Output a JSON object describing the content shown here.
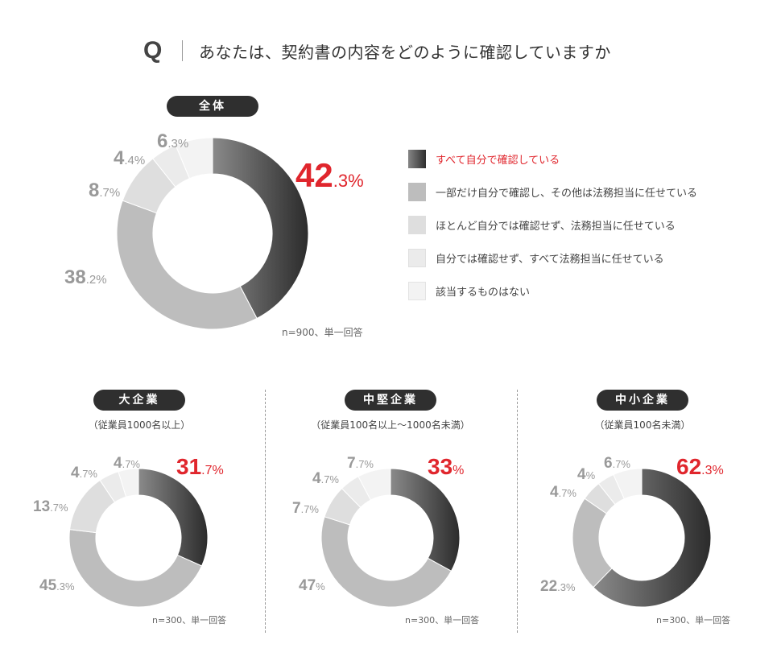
{
  "question": {
    "mark": "Q",
    "text": "あなたは、契約書の内容をどのように確認していますか"
  },
  "colors": {
    "highlight": "#e0262d",
    "segments": [
      "#4a4a4a",
      "#bdbdbd",
      "#dedede",
      "#ebebeb",
      "#f3f3f3"
    ]
  },
  "legend": [
    "すべて自分で確認している",
    "一部だけ自分で確認し、その他は法務担当に任せている",
    "ほとんど自分では確認せず、法務担当に任せている",
    "自分では確認せず、すべて法務担当に任せている",
    "該当するものはない"
  ],
  "chart_data": [
    {
      "type": "pie",
      "title": "全体",
      "subtitle": "",
      "note": "n=900、単一回答",
      "categories": [
        "すべて自分で確認している",
        "一部だけ自分で確認し、その他は法務担当に任せている",
        "ほとんど自分では確認せず、法務担当に任せている",
        "自分では確認せず、すべて法務担当に任せている",
        "該当するものはない"
      ],
      "values": [
        42.3,
        38.2,
        8.7,
        4.4,
        6.3
      ],
      "labels": [
        {
          "int": "42",
          "dec": ".3%"
        },
        {
          "int": "38",
          "dec": ".2%"
        },
        {
          "int": "8",
          "dec": ".7%"
        },
        {
          "int": "4",
          "dec": ".4%"
        },
        {
          "int": "6",
          "dec": ".3%"
        }
      ]
    },
    {
      "type": "pie",
      "title": "大企業",
      "subtitle": "（従業員1000名以上）",
      "note": "n=300、単一回答",
      "categories": [
        "すべて自分で確認している",
        "一部だけ自分で確認し、その他は法務担当に任せている",
        "ほとんど自分では確認せず、法務担当に任せている",
        "自分では確認せず、すべて法務担当に任せている",
        "該当するものはない"
      ],
      "values": [
        31.7,
        45.3,
        13.7,
        4.7,
        4.7
      ],
      "labels": [
        {
          "int": "31",
          "dec": ".7%"
        },
        {
          "int": "45",
          "dec": ".3%"
        },
        {
          "int": "13",
          "dec": ".7%"
        },
        {
          "int": "4",
          "dec": ".7%"
        },
        {
          "int": "4",
          "dec": ".7%"
        }
      ]
    },
    {
      "type": "pie",
      "title": "中堅企業",
      "subtitle": "（従業員100名以上～1000名未満）",
      "note": "n=300、単一回答",
      "categories": [
        "すべて自分で確認している",
        "一部だけ自分で確認し、その他は法務担当に任せている",
        "ほとんど自分では確認せず、法務担当に任せている",
        "自分では確認せず、すべて法務担当に任せている",
        "該当するものはない"
      ],
      "values": [
        33,
        47,
        7.7,
        4.7,
        7.7
      ],
      "labels": [
        {
          "int": "33",
          "dec": "%"
        },
        {
          "int": "47",
          "dec": "%"
        },
        {
          "int": "7",
          "dec": ".7%"
        },
        {
          "int": "4",
          "dec": ".7%"
        },
        {
          "int": "7",
          "dec": ".7%"
        }
      ]
    },
    {
      "type": "pie",
      "title": "中小企業",
      "subtitle": "（従業員100名未満）",
      "note": "n=300、単一回答",
      "categories": [
        "すべて自分で確認している",
        "一部だけ自分で確認し、その他は法務担当に任せている",
        "ほとんど自分では確認せず、法務担当に任せている",
        "自分では確認せず、すべて法務担当に任せている",
        "該当するものはない"
      ],
      "values": [
        62.3,
        22.3,
        4.7,
        4,
        6.7
      ],
      "labels": [
        {
          "int": "62",
          "dec": ".3%"
        },
        {
          "int": "22",
          "dec": ".3%"
        },
        {
          "int": "4",
          "dec": ".7%"
        },
        {
          "int": "4",
          "dec": "%"
        },
        {
          "int": "6",
          "dec": ".7%"
        }
      ]
    }
  ]
}
